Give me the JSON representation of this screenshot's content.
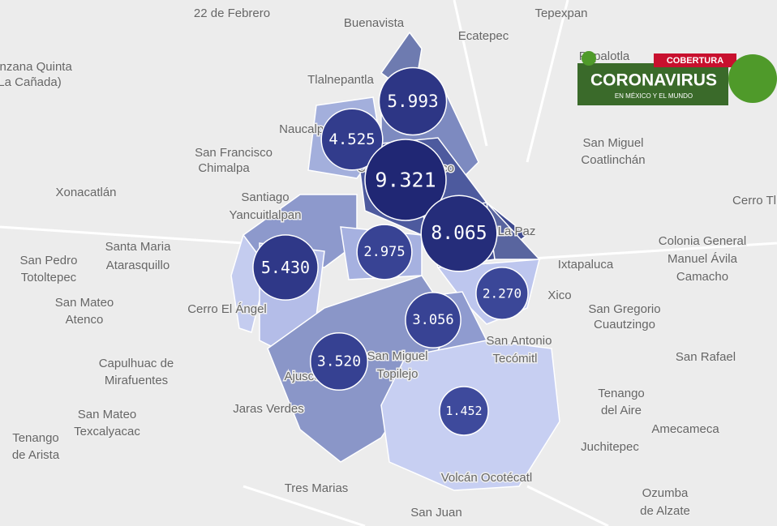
{
  "badge": {
    "tag": "COBERTURA",
    "title": "CORONAVIRUS",
    "subtitle": "EN MÉXICO Y EL MUNDO"
  },
  "places": [
    "22 de Febrero",
    "Buenavista",
    "Tepexpan",
    "Ecatepec",
    "anzana Quinta",
    "(La Cañada)",
    "Tlalnepantla",
    "Papalotla",
    "Naucalpan",
    "San Francisco",
    "Chimalpa",
    "Ciudad de México",
    "San Miguel",
    "Coatlinchán",
    "Xonacatlán",
    "Santiago",
    "Yancuitlalpan",
    "Cerro Tl",
    "La Paz",
    "Santa Maria",
    "Atarasquillo",
    "San Pedro",
    "Totoltepec",
    "Ixtapaluca",
    "Colonia General",
    "Manuel Ávila",
    "Camacho",
    "San Mateo",
    "Atenco",
    "Cerro El Ángel",
    "Xico",
    "San Gregorio",
    "Cuautzingo",
    "Capulhuac de",
    "Mirafuentes",
    "San Rafael",
    "Ajusco",
    "San Miguel",
    "Topilejo",
    "San Antonio",
    "Tecómitl",
    "Tenango",
    "del Aire",
    "Jaras Verdes",
    "San Mateo",
    "Texcalyacac",
    "Tenango",
    "de Arista",
    "Amecameca",
    "Juchitepec",
    "Volcán Ocotécatl",
    "Tres Marias",
    "Ozumba",
    "de Alzate",
    "San Juan"
  ],
  "bubbles": [
    {
      "value": 5993,
      "label": "5.993"
    },
    {
      "value": 4525,
      "label": "4.525"
    },
    {
      "value": 9321,
      "label": "9.321"
    },
    {
      "value": 8065,
      "label": "8.065"
    },
    {
      "value": 5430,
      "label": "5.430"
    },
    {
      "value": 2975,
      "label": "2.975"
    },
    {
      "value": 2270,
      "label": "2.270"
    },
    {
      "value": 3056,
      "label": "3.056"
    },
    {
      "value": 3520,
      "label": "3.520"
    },
    {
      "value": 1452,
      "label": "1.452"
    }
  ]
}
